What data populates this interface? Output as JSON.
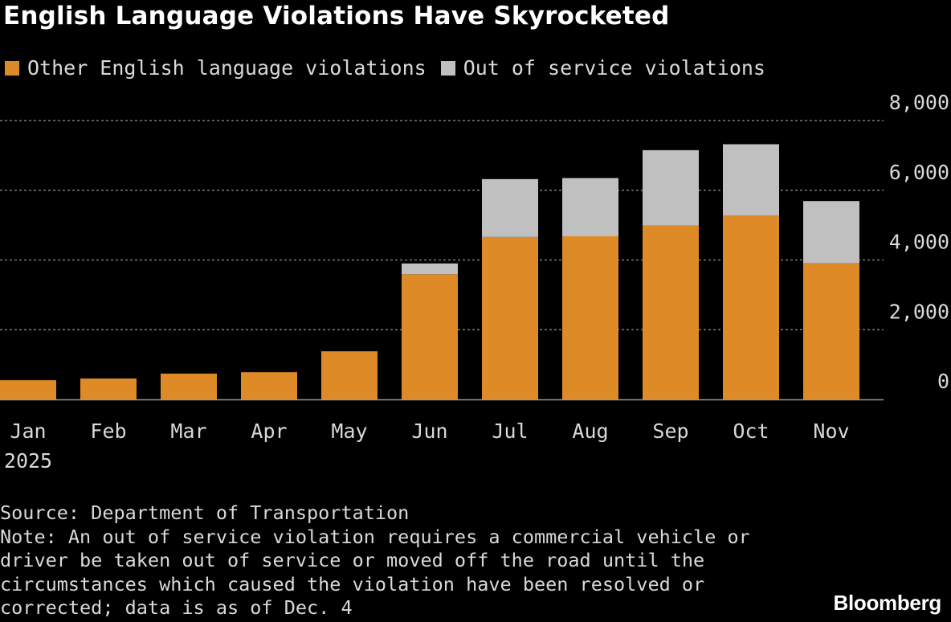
{
  "colors": {
    "background": "#000000",
    "series_orange": "#de8a26",
    "series_gray": "#c0c0c0",
    "grid": "#7a7a7a"
  },
  "footer": {
    "source": "Source: Department of Transportation",
    "note": "Note: An out of service violation requires a commercial vehicle or driver be taken out of service or moved off the road until the circumstances which caused the violation have been resolved or corrected; data is as of Dec. 4",
    "brand": "Bloomberg"
  },
  "chart_data": {
    "type": "bar",
    "stacked": true,
    "title": "English Language Violations Have Skyrocketed",
    "categories": [
      "Jan",
      "Feb",
      "Mar",
      "Apr",
      "May",
      "Jun",
      "Jul",
      "Aug",
      "Sep",
      "Oct",
      "Nov"
    ],
    "x_sublabel": "2025",
    "series": [
      {
        "name": "Other English language violations",
        "color": "#de8a26",
        "values": [
          550,
          600,
          740,
          780,
          1380,
          3590,
          4660,
          4680,
          4990,
          5280,
          3910
        ]
      },
      {
        "name": "Out of service violations",
        "color": "#c0c0c0",
        "values": [
          0,
          0,
          0,
          0,
          0,
          310,
          1660,
          1670,
          2160,
          2040,
          1780
        ]
      }
    ],
    "y_ticks": [
      0,
      2000,
      4000,
      6000,
      8000
    ],
    "y_tick_labels": [
      "0",
      "2,000",
      "4,000",
      "6,000",
      "8,000"
    ],
    "ylim": [
      0,
      8000
    ],
    "y_axis_side": "right",
    "grid": true,
    "legend_position": "top-left"
  }
}
